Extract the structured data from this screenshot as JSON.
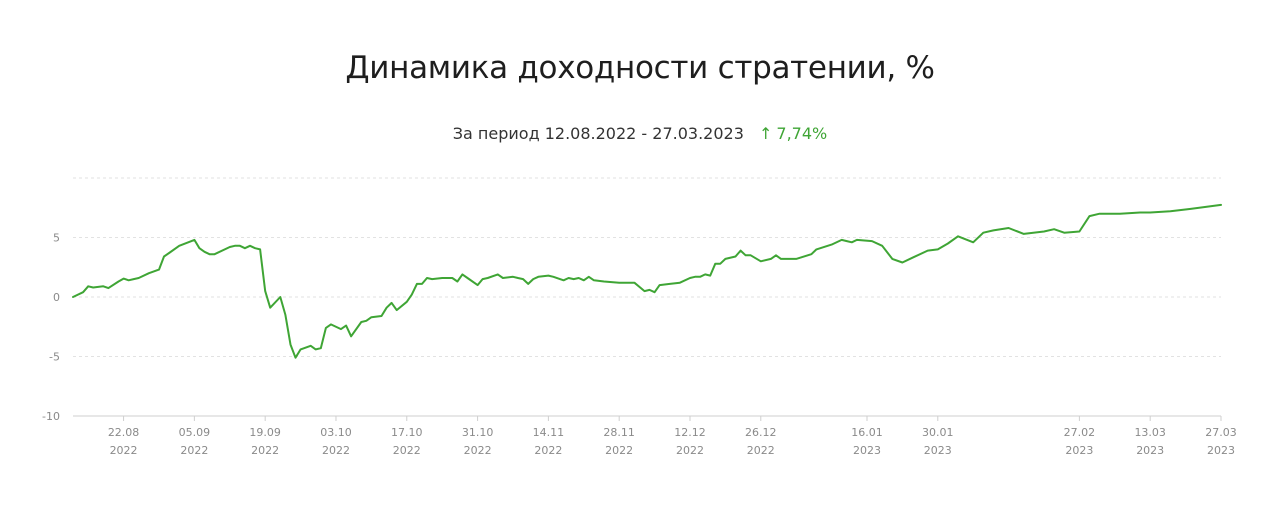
{
  "header": {
    "title": "Динамика доходности стратении, %",
    "period_label": "За период 12.08.2022 - 27.03.2023",
    "arrow": "↑",
    "total_return": "7,74%"
  },
  "colors": {
    "line": "#3fa535",
    "grid": "#e2e2e2",
    "tick_text": "#8a8a8a"
  },
  "chart_data": {
    "type": "line",
    "title": "Динамика доходности стратении, %",
    "xlabel": "",
    "ylabel": "",
    "ylim": [
      -10,
      10
    ],
    "xlim": [
      "2022-08-12",
      "2023-03-27"
    ],
    "grid": true,
    "y_ticks": [
      {
        "value": -10,
        "label": "-10"
      },
      {
        "value": -5,
        "label": "-5"
      },
      {
        "value": 0,
        "label": "0"
      },
      {
        "value": 5,
        "label": "5"
      },
      {
        "value": 10,
        "label": ""
      }
    ],
    "x_ticks": [
      {
        "date": "2022-08-22",
        "label": "22.08",
        "year": "2022"
      },
      {
        "date": "2022-09-05",
        "label": "05.09",
        "year": "2022"
      },
      {
        "date": "2022-09-19",
        "label": "19.09",
        "year": "2022"
      },
      {
        "date": "2022-10-03",
        "label": "03.10",
        "year": "2022"
      },
      {
        "date": "2022-10-17",
        "label": "17.10",
        "year": "2022"
      },
      {
        "date": "2022-10-31",
        "label": "31.10",
        "year": "2022"
      },
      {
        "date": "2022-11-14",
        "label": "14.11",
        "year": "2022"
      },
      {
        "date": "2022-11-28",
        "label": "28.11",
        "year": "2022"
      },
      {
        "date": "2022-12-12",
        "label": "12.12",
        "year": "2022"
      },
      {
        "date": "2022-12-26",
        "label": "26.12",
        "year": "2022"
      },
      {
        "date": "2023-01-16",
        "label": "16.01",
        "year": "2023"
      },
      {
        "date": "2023-01-30",
        "label": "30.01",
        "year": "2023"
      },
      {
        "date": "2023-02-27",
        "label": "27.02",
        "year": "2023"
      },
      {
        "date": "2023-03-13",
        "label": "13.03",
        "year": "2023"
      },
      {
        "date": "2023-03-27",
        "label": "27.03",
        "year": "2023"
      }
    ],
    "series": [
      {
        "color": "#3fa535",
        "points": [
          [
            "2022-08-12",
            0.0
          ],
          [
            "2022-08-14",
            0.4
          ],
          [
            "2022-08-15",
            0.9
          ],
          [
            "2022-08-16",
            0.8
          ],
          [
            "2022-08-18",
            0.9
          ],
          [
            "2022-08-19",
            0.75
          ],
          [
            "2022-08-21",
            1.3
          ],
          [
            "2022-08-22",
            1.55
          ],
          [
            "2022-08-23",
            1.4
          ],
          [
            "2022-08-24",
            1.5
          ],
          [
            "2022-08-25",
            1.6
          ],
          [
            "2022-08-27",
            2.0
          ],
          [
            "2022-08-29",
            2.3
          ],
          [
            "2022-08-30",
            3.4
          ],
          [
            "2022-08-31",
            3.7
          ],
          [
            "2022-09-02",
            4.3
          ],
          [
            "2022-09-05",
            4.8
          ],
          [
            "2022-09-06",
            4.1
          ],
          [
            "2022-09-07",
            3.8
          ],
          [
            "2022-09-08",
            3.6
          ],
          [
            "2022-09-09",
            3.6
          ],
          [
            "2022-09-12",
            4.2
          ],
          [
            "2022-09-13",
            4.3
          ],
          [
            "2022-09-14",
            4.3
          ],
          [
            "2022-09-15",
            4.1
          ],
          [
            "2022-09-16",
            4.3
          ],
          [
            "2022-09-17",
            4.1
          ],
          [
            "2022-09-18",
            4.0
          ],
          [
            "2022-09-19",
            0.5
          ],
          [
            "2022-09-20",
            -0.9
          ],
          [
            "2022-09-22",
            0.0
          ],
          [
            "2022-09-23",
            -1.5
          ],
          [
            "2022-09-24",
            -4.0
          ],
          [
            "2022-09-25",
            -5.1
          ],
          [
            "2022-09-26",
            -4.4
          ],
          [
            "2022-09-28",
            -4.1
          ],
          [
            "2022-09-29",
            -4.4
          ],
          [
            "2022-09-30",
            -4.3
          ],
          [
            "2022-10-01",
            -2.6
          ],
          [
            "2022-10-02",
            -2.3
          ],
          [
            "2022-10-04",
            -2.7
          ],
          [
            "2022-10-05",
            -2.4
          ],
          [
            "2022-10-06",
            -3.3
          ],
          [
            "2022-10-08",
            -2.1
          ],
          [
            "2022-10-09",
            -2.0
          ],
          [
            "2022-10-10",
            -1.7
          ],
          [
            "2022-10-12",
            -1.6
          ],
          [
            "2022-10-13",
            -0.9
          ],
          [
            "2022-10-14",
            -0.5
          ],
          [
            "2022-10-15",
            -1.1
          ],
          [
            "2022-10-17",
            -0.4
          ],
          [
            "2022-10-18",
            0.2
          ],
          [
            "2022-10-19",
            1.1
          ],
          [
            "2022-10-20",
            1.1
          ],
          [
            "2022-10-21",
            1.6
          ],
          [
            "2022-10-22",
            1.5
          ],
          [
            "2022-10-24",
            1.6
          ],
          [
            "2022-10-25",
            1.6
          ],
          [
            "2022-10-26",
            1.6
          ],
          [
            "2022-10-27",
            1.3
          ],
          [
            "2022-10-28",
            1.9
          ],
          [
            "2022-10-29",
            1.6
          ],
          [
            "2022-10-31",
            1.0
          ],
          [
            "2022-11-01",
            1.5
          ],
          [
            "2022-11-02",
            1.6
          ],
          [
            "2022-11-04",
            1.9
          ],
          [
            "2022-11-05",
            1.6
          ],
          [
            "2022-11-07",
            1.7
          ],
          [
            "2022-11-08",
            1.6
          ],
          [
            "2022-11-09",
            1.5
          ],
          [
            "2022-11-10",
            1.1
          ],
          [
            "2022-11-11",
            1.5
          ],
          [
            "2022-11-12",
            1.7
          ],
          [
            "2022-11-14",
            1.8
          ],
          [
            "2022-11-15",
            1.7
          ],
          [
            "2022-11-17",
            1.4
          ],
          [
            "2022-11-18",
            1.6
          ],
          [
            "2022-11-19",
            1.5
          ],
          [
            "2022-11-20",
            1.6
          ],
          [
            "2022-11-21",
            1.4
          ],
          [
            "2022-11-22",
            1.7
          ],
          [
            "2022-11-23",
            1.4
          ],
          [
            "2022-11-25",
            1.3
          ],
          [
            "2022-11-28",
            1.2
          ],
          [
            "2022-12-01",
            1.2
          ],
          [
            "2022-12-03",
            0.5
          ],
          [
            "2022-12-04",
            0.6
          ],
          [
            "2022-12-05",
            0.4
          ],
          [
            "2022-12-06",
            1.0
          ],
          [
            "2022-12-08",
            1.1
          ],
          [
            "2022-12-10",
            1.2
          ],
          [
            "2022-12-12",
            1.6
          ],
          [
            "2022-12-13",
            1.7
          ],
          [
            "2022-12-14",
            1.7
          ],
          [
            "2022-12-15",
            1.9
          ],
          [
            "2022-12-16",
            1.8
          ],
          [
            "2022-12-17",
            2.8
          ],
          [
            "2022-12-18",
            2.8
          ],
          [
            "2022-12-19",
            3.2
          ],
          [
            "2022-12-21",
            3.4
          ],
          [
            "2022-12-22",
            3.9
          ],
          [
            "2022-12-23",
            3.5
          ],
          [
            "2022-12-24",
            3.5
          ],
          [
            "2022-12-26",
            3.0
          ],
          [
            "2022-12-28",
            3.2
          ],
          [
            "2022-12-29",
            3.5
          ],
          [
            "2022-12-30",
            3.2
          ],
          [
            "2023-01-02",
            3.2
          ],
          [
            "2023-01-05",
            3.6
          ],
          [
            "2023-01-06",
            4.0
          ],
          [
            "2023-01-09",
            4.4
          ],
          [
            "2023-01-11",
            4.8
          ],
          [
            "2023-01-12",
            4.7
          ],
          [
            "2023-01-13",
            4.6
          ],
          [
            "2023-01-14",
            4.8
          ],
          [
            "2023-01-17",
            4.7
          ],
          [
            "2023-01-19",
            4.3
          ],
          [
            "2023-01-21",
            3.2
          ],
          [
            "2023-01-23",
            2.9
          ],
          [
            "2023-01-25",
            3.3
          ],
          [
            "2023-01-28",
            3.9
          ],
          [
            "2023-01-30",
            4.0
          ],
          [
            "2023-02-01",
            4.5
          ],
          [
            "2023-02-03",
            5.1
          ],
          [
            "2023-02-06",
            4.6
          ],
          [
            "2023-02-08",
            5.4
          ],
          [
            "2023-02-10",
            5.6
          ],
          [
            "2023-02-13",
            5.8
          ],
          [
            "2023-02-16",
            5.3
          ],
          [
            "2023-02-20",
            5.5
          ],
          [
            "2023-02-22",
            5.7
          ],
          [
            "2023-02-24",
            5.4
          ],
          [
            "2023-02-27",
            5.5
          ],
          [
            "2023-03-01",
            6.8
          ],
          [
            "2023-03-03",
            7.0
          ],
          [
            "2023-03-07",
            7.0
          ],
          [
            "2023-03-11",
            7.1
          ],
          [
            "2023-03-13",
            7.1
          ],
          [
            "2023-03-17",
            7.2
          ],
          [
            "2023-03-21",
            7.4
          ],
          [
            "2023-03-27",
            7.74
          ]
        ]
      }
    ]
  }
}
